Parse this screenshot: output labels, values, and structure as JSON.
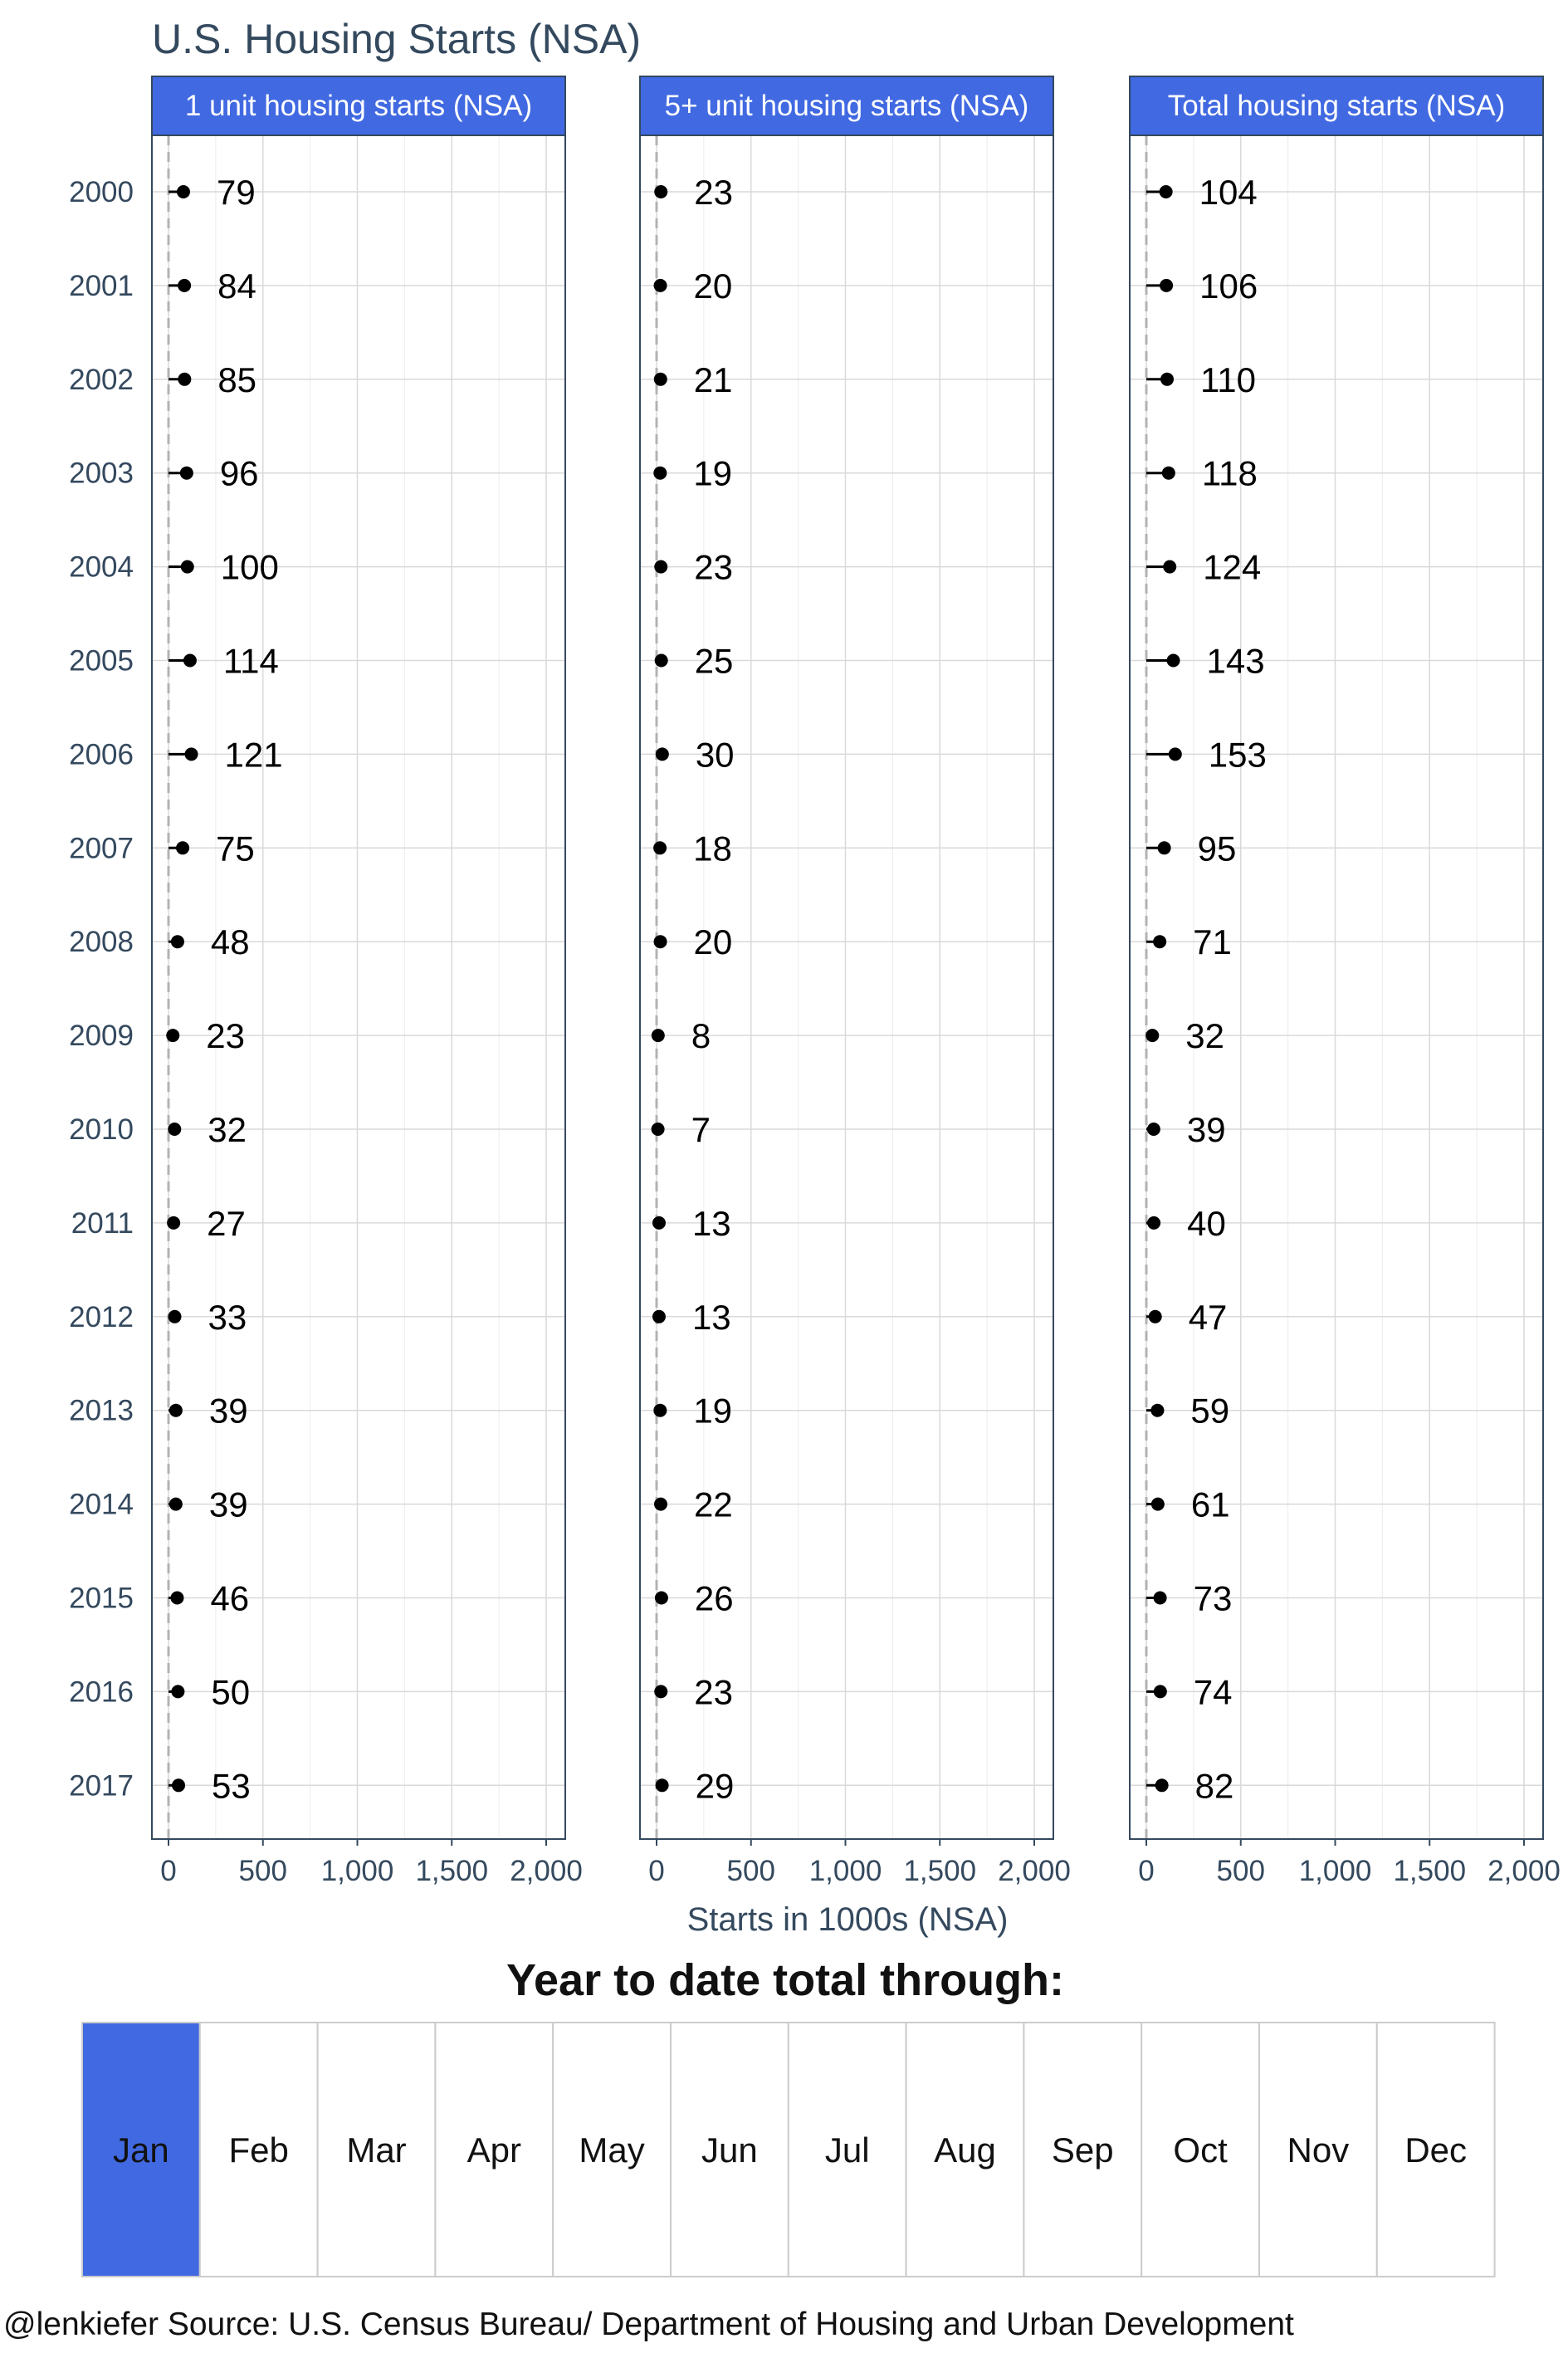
{
  "chart_data": {
    "type": "scatter",
    "title": "U.S. Housing Starts (NSA)",
    "xlabel": "Starts in 1000s (NSA)",
    "ylabel": "",
    "xlim": [
      0,
      2000
    ],
    "x_ticks": [
      0,
      500,
      1000,
      1500,
      2000
    ],
    "x_tick_labels": [
      "0",
      "500",
      "1,000",
      "1,500",
      "2,000"
    ],
    "categories": [
      "2000",
      "2001",
      "2002",
      "2003",
      "2004",
      "2005",
      "2006",
      "2007",
      "2008",
      "2009",
      "2010",
      "2011",
      "2012",
      "2013",
      "2014",
      "2015",
      "2016",
      "2017"
    ],
    "reference_line_x": 0,
    "grid": true,
    "panels": [
      {
        "name": "1 unit housing starts (NSA)",
        "values": [
          79,
          84,
          85,
          96,
          100,
          114,
          121,
          75,
          48,
          23,
          32,
          27,
          33,
          39,
          39,
          46,
          50,
          53
        ]
      },
      {
        "name": "5+ unit housing starts (NSA)",
        "values": [
          23,
          20,
          21,
          19,
          23,
          25,
          30,
          18,
          20,
          8,
          7,
          13,
          13,
          19,
          22,
          26,
          23,
          29
        ]
      },
      {
        "name": "Total housing starts (NSA)",
        "values": [
          104,
          106,
          110,
          118,
          124,
          143,
          153,
          95,
          71,
          32,
          39,
          40,
          47,
          59,
          61,
          73,
          74,
          82
        ]
      }
    ]
  },
  "ytd": {
    "title": "Year to date total through:",
    "months": [
      "Jan",
      "Feb",
      "Mar",
      "Apr",
      "May",
      "Jun",
      "Jul",
      "Aug",
      "Sep",
      "Oct",
      "Nov",
      "Dec"
    ],
    "selected": "Jan"
  },
  "caption": "@lenkiefer Source: U.S. Census Bureau/ Department of Housing and Urban Development",
  "colors": {
    "strip": "#4169e1",
    "title": "#34495e",
    "panel_border": "#34495e",
    "grid": "#d9d9d9",
    "zero_line": "#b3b3b3",
    "point": "#000000",
    "selected_month": "#4169e1",
    "month_border": "#cccccc"
  }
}
